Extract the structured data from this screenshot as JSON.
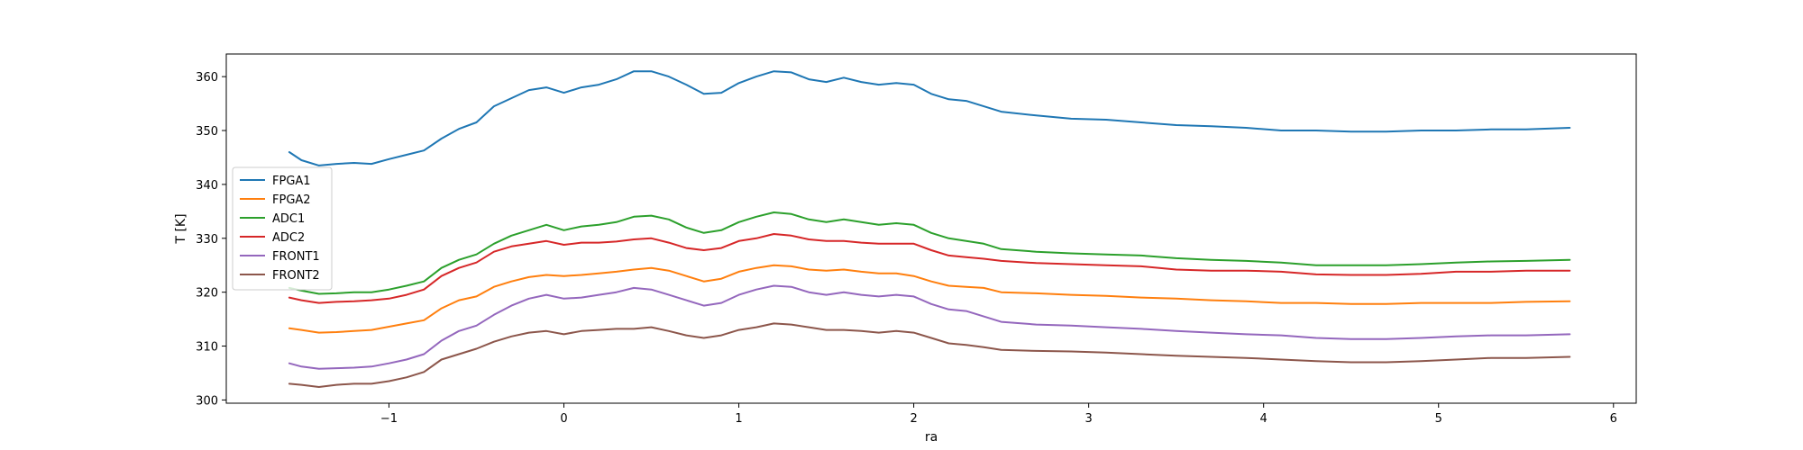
{
  "chart_data": {
    "type": "line",
    "xlabel": "ra",
    "ylabel": "T [K]",
    "xlim": [
      -1.93,
      6.13
    ],
    "ylim": [
      299.4,
      364.2
    ],
    "xticks": [
      -1,
      0,
      1,
      2,
      3,
      4,
      5,
      6
    ],
    "xtick_labels": [
      "−1",
      "0",
      "1",
      "2",
      "3",
      "4",
      "5",
      "6"
    ],
    "yticks": [
      300,
      310,
      320,
      330,
      340,
      350,
      360
    ],
    "ytick_labels": [
      "300",
      "310",
      "320",
      "330",
      "340",
      "350",
      "360"
    ],
    "grid": false,
    "legend_position": "center-left",
    "x": [
      -1.57,
      -1.5,
      -1.4,
      -1.3,
      -1.2,
      -1.1,
      -1.0,
      -0.9,
      -0.8,
      -0.7,
      -0.6,
      -0.5,
      -0.4,
      -0.3,
      -0.2,
      -0.1,
      0.0,
      0.1,
      0.2,
      0.3,
      0.4,
      0.5,
      0.6,
      0.7,
      0.8,
      0.9,
      1.0,
      1.1,
      1.2,
      1.3,
      1.4,
      1.5,
      1.6,
      1.7,
      1.8,
      1.9,
      2.0,
      2.1,
      2.2,
      2.3,
      2.4,
      2.5,
      2.7,
      2.9,
      3.1,
      3.3,
      3.5,
      3.7,
      3.9,
      4.1,
      4.3,
      4.5,
      4.7,
      4.9,
      5.1,
      5.3,
      5.5,
      5.75
    ],
    "series": [
      {
        "name": "FPGA1",
        "color": "#1f77b4",
        "values": [
          346,
          344.5,
          343.5,
          343.8,
          344.0,
          343.8,
          344.7,
          345.5,
          346.3,
          348.5,
          350.3,
          351.5,
          354.5,
          356.0,
          357.5,
          358.0,
          357.0,
          358.0,
          358.5,
          359.5,
          361.0,
          361.0,
          360.0,
          358.5,
          356.8,
          357.0,
          358.8,
          360.0,
          361.0,
          360.8,
          359.5,
          359.0,
          359.8,
          359.0,
          358.5,
          358.8,
          358.5,
          356.8,
          355.8,
          355.5,
          354.5,
          353.5,
          352.8,
          352.2,
          352.0,
          351.5,
          351.0,
          350.8,
          350.5,
          350.0,
          350.0,
          349.8,
          349.8,
          350.0,
          350.0,
          350.2,
          350.2,
          350.5
        ]
      },
      {
        "name": "FPGA2",
        "color": "#ff7f0e",
        "values": [
          313.3,
          313.0,
          312.5,
          312.6,
          312.8,
          313.0,
          313.6,
          314.2,
          314.8,
          317.0,
          318.5,
          319.2,
          321.0,
          322.0,
          322.8,
          323.2,
          323.0,
          323.2,
          323.5,
          323.8,
          324.2,
          324.5,
          324.0,
          323.0,
          322.0,
          322.5,
          323.8,
          324.5,
          325.0,
          324.8,
          324.2,
          324.0,
          324.2,
          323.8,
          323.5,
          323.5,
          323.0,
          322.0,
          321.2,
          321.0,
          320.8,
          320.0,
          319.8,
          319.5,
          319.3,
          319.0,
          318.8,
          318.5,
          318.3,
          318.0,
          318.0,
          317.8,
          317.8,
          318.0,
          318.0,
          318.0,
          318.2,
          318.3
        ]
      },
      {
        "name": "ADC1",
        "color": "#2ca02c",
        "values": [
          320.8,
          320.3,
          319.7,
          319.8,
          320.0,
          320.0,
          320.5,
          321.2,
          322.0,
          324.5,
          326.0,
          327.0,
          329.0,
          330.5,
          331.5,
          332.5,
          331.5,
          332.2,
          332.5,
          333.0,
          334.0,
          334.2,
          333.5,
          332.0,
          331.0,
          331.5,
          333.0,
          334.0,
          334.8,
          334.5,
          333.5,
          333.0,
          333.5,
          333.0,
          332.5,
          332.8,
          332.5,
          331.0,
          330.0,
          329.5,
          329.0,
          328.0,
          327.5,
          327.2,
          327.0,
          326.8,
          326.3,
          326.0,
          325.8,
          325.5,
          325.0,
          325.0,
          325.0,
          325.2,
          325.5,
          325.7,
          325.8,
          326.0
        ]
      },
      {
        "name": "ADC2",
        "color": "#d62728",
        "values": [
          319.0,
          318.5,
          318.0,
          318.2,
          318.3,
          318.5,
          318.8,
          319.5,
          320.5,
          323.0,
          324.5,
          325.5,
          327.5,
          328.5,
          329.0,
          329.5,
          328.8,
          329.2,
          329.2,
          329.4,
          329.8,
          330.0,
          329.2,
          328.2,
          327.8,
          328.2,
          329.5,
          330.0,
          330.8,
          330.5,
          329.8,
          329.5,
          329.5,
          329.2,
          329.0,
          329.0,
          329.0,
          327.8,
          326.8,
          326.5,
          326.2,
          325.8,
          325.4,
          325.2,
          325.0,
          324.8,
          324.2,
          324.0,
          324.0,
          323.8,
          323.3,
          323.2,
          323.2,
          323.4,
          323.8,
          323.8,
          324.0,
          324.0
        ]
      },
      {
        "name": "FRONT1",
        "color": "#9467bd",
        "values": [
          306.8,
          306.2,
          305.8,
          305.9,
          306.0,
          306.2,
          306.8,
          307.5,
          308.5,
          311.0,
          312.8,
          313.8,
          315.8,
          317.5,
          318.8,
          319.5,
          318.8,
          319.0,
          319.5,
          320.0,
          320.8,
          320.5,
          319.5,
          318.5,
          317.5,
          318.0,
          319.5,
          320.5,
          321.2,
          321.0,
          320.0,
          319.5,
          320.0,
          319.5,
          319.2,
          319.5,
          319.2,
          317.8,
          316.8,
          316.5,
          315.5,
          314.5,
          314.0,
          313.8,
          313.5,
          313.2,
          312.8,
          312.5,
          312.2,
          312.0,
          311.5,
          311.3,
          311.3,
          311.5,
          311.8,
          312.0,
          312.0,
          312.2
        ]
      },
      {
        "name": "FRONT2",
        "color": "#8c564b",
        "values": [
          303.0,
          302.8,
          302.4,
          302.8,
          303.0,
          303.0,
          303.5,
          304.2,
          305.2,
          307.5,
          308.5,
          309.5,
          310.8,
          311.8,
          312.5,
          312.8,
          312.2,
          312.8,
          313.0,
          313.2,
          313.2,
          313.5,
          312.8,
          312.0,
          311.5,
          312.0,
          313.0,
          313.5,
          314.2,
          314.0,
          313.5,
          313.0,
          313.0,
          312.8,
          312.5,
          312.8,
          312.5,
          311.5,
          310.5,
          310.2,
          309.8,
          309.3,
          309.1,
          309.0,
          308.8,
          308.5,
          308.2,
          308.0,
          307.8,
          307.5,
          307.2,
          307.0,
          307.0,
          307.2,
          307.5,
          307.8,
          307.8,
          308.0
        ]
      }
    ]
  }
}
